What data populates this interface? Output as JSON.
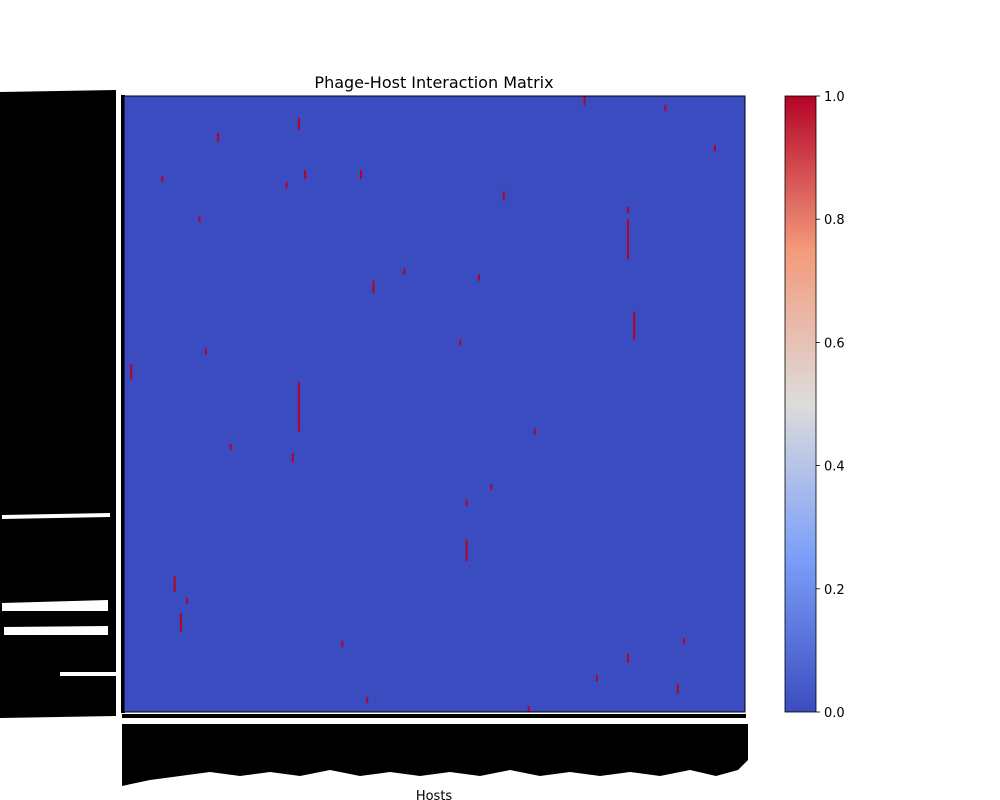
{
  "chart_data": {
    "type": "heatmap",
    "title": "Phage-Host Interaction Matrix",
    "xlabel": "Hosts",
    "ylabel": "",
    "value_range": [
      0,
      1
    ],
    "colormap": "coolwarm",
    "colors": {
      "low": "#3b4cc0",
      "high": "#b40426"
    },
    "colorbar_ticks": [
      "0.0",
      "0.2",
      "0.4",
      "0.6",
      "0.8",
      "1.0"
    ],
    "row_tick_labels": "dense, illegible (black tick-label mass)",
    "col_tick_labels": "dense, illegible (rotated tick-label mass)",
    "background_value": 0,
    "positive_interactions": [
      {
        "x": 0.74,
        "y": 0.0,
        "len": 0.015
      },
      {
        "x": 0.87,
        "y": 0.015,
        "len": 0.01
      },
      {
        "x": 0.28,
        "y": 0.035,
        "len": 0.02
      },
      {
        "x": 0.15,
        "y": 0.06,
        "len": 0.015
      },
      {
        "x": 0.95,
        "y": 0.08,
        "len": 0.01
      },
      {
        "x": 0.38,
        "y": 0.12,
        "len": 0.015
      },
      {
        "x": 0.29,
        "y": 0.12,
        "len": 0.015
      },
      {
        "x": 0.06,
        "y": 0.13,
        "len": 0.01
      },
      {
        "x": 0.26,
        "y": 0.14,
        "len": 0.01
      },
      {
        "x": 0.61,
        "y": 0.155,
        "len": 0.015
      },
      {
        "x": 0.81,
        "y": 0.18,
        "len": 0.01
      },
      {
        "x": 0.12,
        "y": 0.195,
        "len": 0.01
      },
      {
        "x": 0.81,
        "y": 0.2,
        "len": 0.065
      },
      {
        "x": 0.45,
        "y": 0.28,
        "len": 0.01
      },
      {
        "x": 0.4,
        "y": 0.3,
        "len": 0.02
      },
      {
        "x": 0.57,
        "y": 0.29,
        "len": 0.01
      },
      {
        "x": 0.82,
        "y": 0.35,
        "len": 0.045
      },
      {
        "x": 0.54,
        "y": 0.395,
        "len": 0.01
      },
      {
        "x": 0.13,
        "y": 0.41,
        "len": 0.01
      },
      {
        "x": 0.01,
        "y": 0.435,
        "len": 0.025
      },
      {
        "x": 0.28,
        "y": 0.465,
        "len": 0.08
      },
      {
        "x": 0.66,
        "y": 0.54,
        "len": 0.01
      },
      {
        "x": 0.17,
        "y": 0.565,
        "len": 0.01
      },
      {
        "x": 0.27,
        "y": 0.58,
        "len": 0.015
      },
      {
        "x": 0.59,
        "y": 0.63,
        "len": 0.01
      },
      {
        "x": 0.55,
        "y": 0.655,
        "len": 0.01
      },
      {
        "x": 0.55,
        "y": 0.72,
        "len": 0.035
      },
      {
        "x": 0.08,
        "y": 0.78,
        "len": 0.025
      },
      {
        "x": 0.1,
        "y": 0.815,
        "len": 0.01
      },
      {
        "x": 0.09,
        "y": 0.84,
        "len": 0.03
      },
      {
        "x": 0.35,
        "y": 0.885,
        "len": 0.01
      },
      {
        "x": 0.9,
        "y": 0.88,
        "len": 0.01
      },
      {
        "x": 0.81,
        "y": 0.905,
        "len": 0.015
      },
      {
        "x": 0.76,
        "y": 0.94,
        "len": 0.01
      },
      {
        "x": 0.89,
        "y": 0.955,
        "len": 0.015
      },
      {
        "x": 0.39,
        "y": 0.975,
        "len": 0.01
      },
      {
        "x": 0.65,
        "y": 0.99,
        "len": 0.01
      }
    ]
  }
}
